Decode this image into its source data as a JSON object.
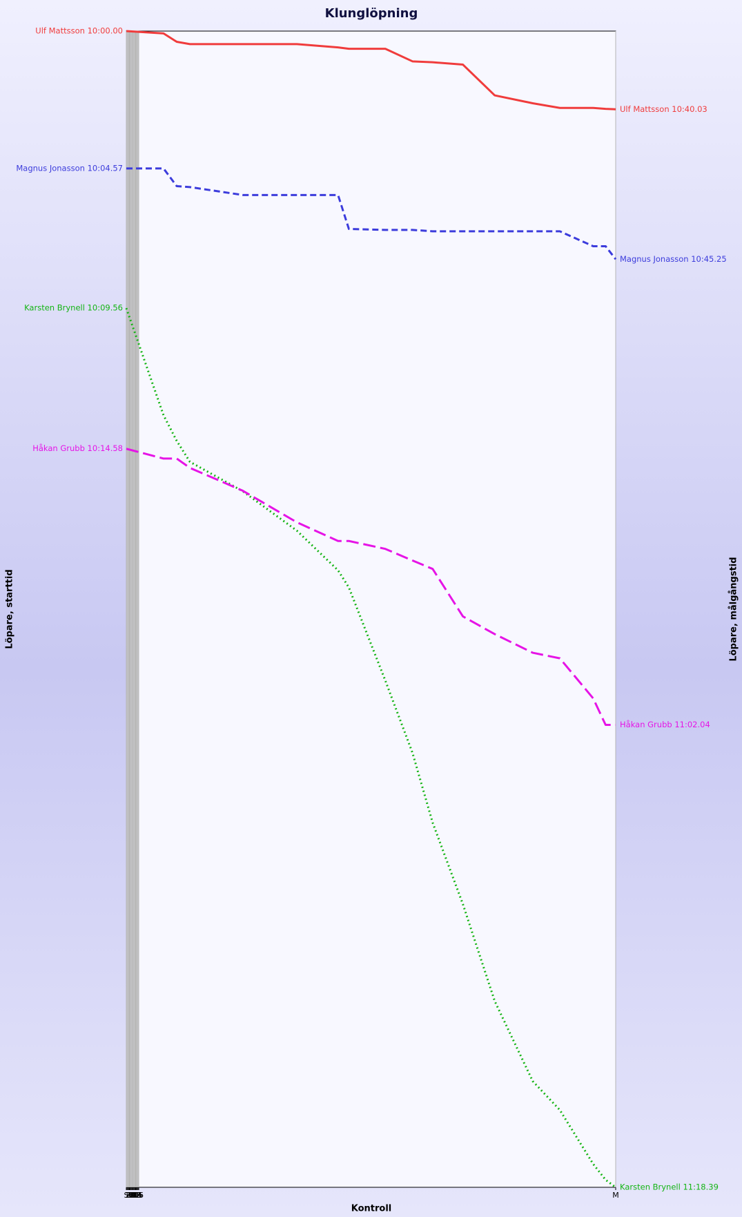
{
  "chart_data": {
    "type": "line",
    "title": "Klunglöpning",
    "xlabel": "Kontroll",
    "ylabel": "Löpare, starttid",
    "y2label": "Löpare, målgångstid",
    "x": [
      0,
      48,
      65,
      82,
      150,
      220,
      273,
      287,
      334,
      369,
      395,
      434,
      475,
      524,
      559,
      602,
      618,
      631
    ],
    "xlim": [
      0,
      631
    ],
    "xticks": [
      {
        "value": 0,
        "label": "S"
      },
      1,
      2,
      3,
      4,
      5,
      6,
      7,
      8,
      9,
      10,
      11,
      12,
      13,
      14,
      15,
      16,
      {
        "value": 631,
        "label": "M"
      }
    ],
    "ylim": [
      0,
      2483
    ],
    "y_inverted": true,
    "grid": true,
    "series": [
      {
        "name": "Ulf Mattsson",
        "start_label": "Ulf Mattsson 10:00.00",
        "end_label": "Ulf Mattsson 10:40.03",
        "color": "#f03c3c",
        "line_style": "solid",
        "values": [
          0,
          5,
          23,
          28,
          28,
          28,
          35,
          38,
          38,
          65,
          67,
          72,
          138,
          155,
          165,
          165,
          167,
          168
        ]
      },
      {
        "name": "Magnus Jonasson",
        "start_label": "Magnus Jonasson 10:04.57",
        "end_label": "Magnus Jonasson 10:45.25",
        "color": "#3c3cdc",
        "line_style": "dashed",
        "values": [
          295,
          295,
          333,
          335,
          352,
          352,
          352,
          425,
          427,
          427,
          430,
          430,
          430,
          430,
          430,
          462,
          462,
          490
        ]
      },
      {
        "name": "Karsten Brynell",
        "start_label": "Karsten Brynell 10:09.56",
        "end_label": "Karsten Brynell 11:18.39",
        "color": "#14b414",
        "line_style": "dotted",
        "values": [
          595,
          825,
          880,
          925,
          988,
          1073,
          1158,
          1195,
          1395,
          1550,
          1700,
          1875,
          2083,
          2255,
          2317,
          2433,
          2467,
          2483
        ]
      },
      {
        "name": "Håkan Grubb",
        "start_label": "Håkan Grubb 10:14.58",
        "end_label": "Håkan Grubb 11:02.04",
        "color": "#e614e6",
        "line_style": "longdash",
        "values": [
          897,
          918,
          918,
          938,
          987,
          1055,
          1095,
          1095,
          1112,
          1137,
          1155,
          1257,
          1295,
          1335,
          1347,
          1433,
          1490,
          1490
        ]
      }
    ]
  }
}
